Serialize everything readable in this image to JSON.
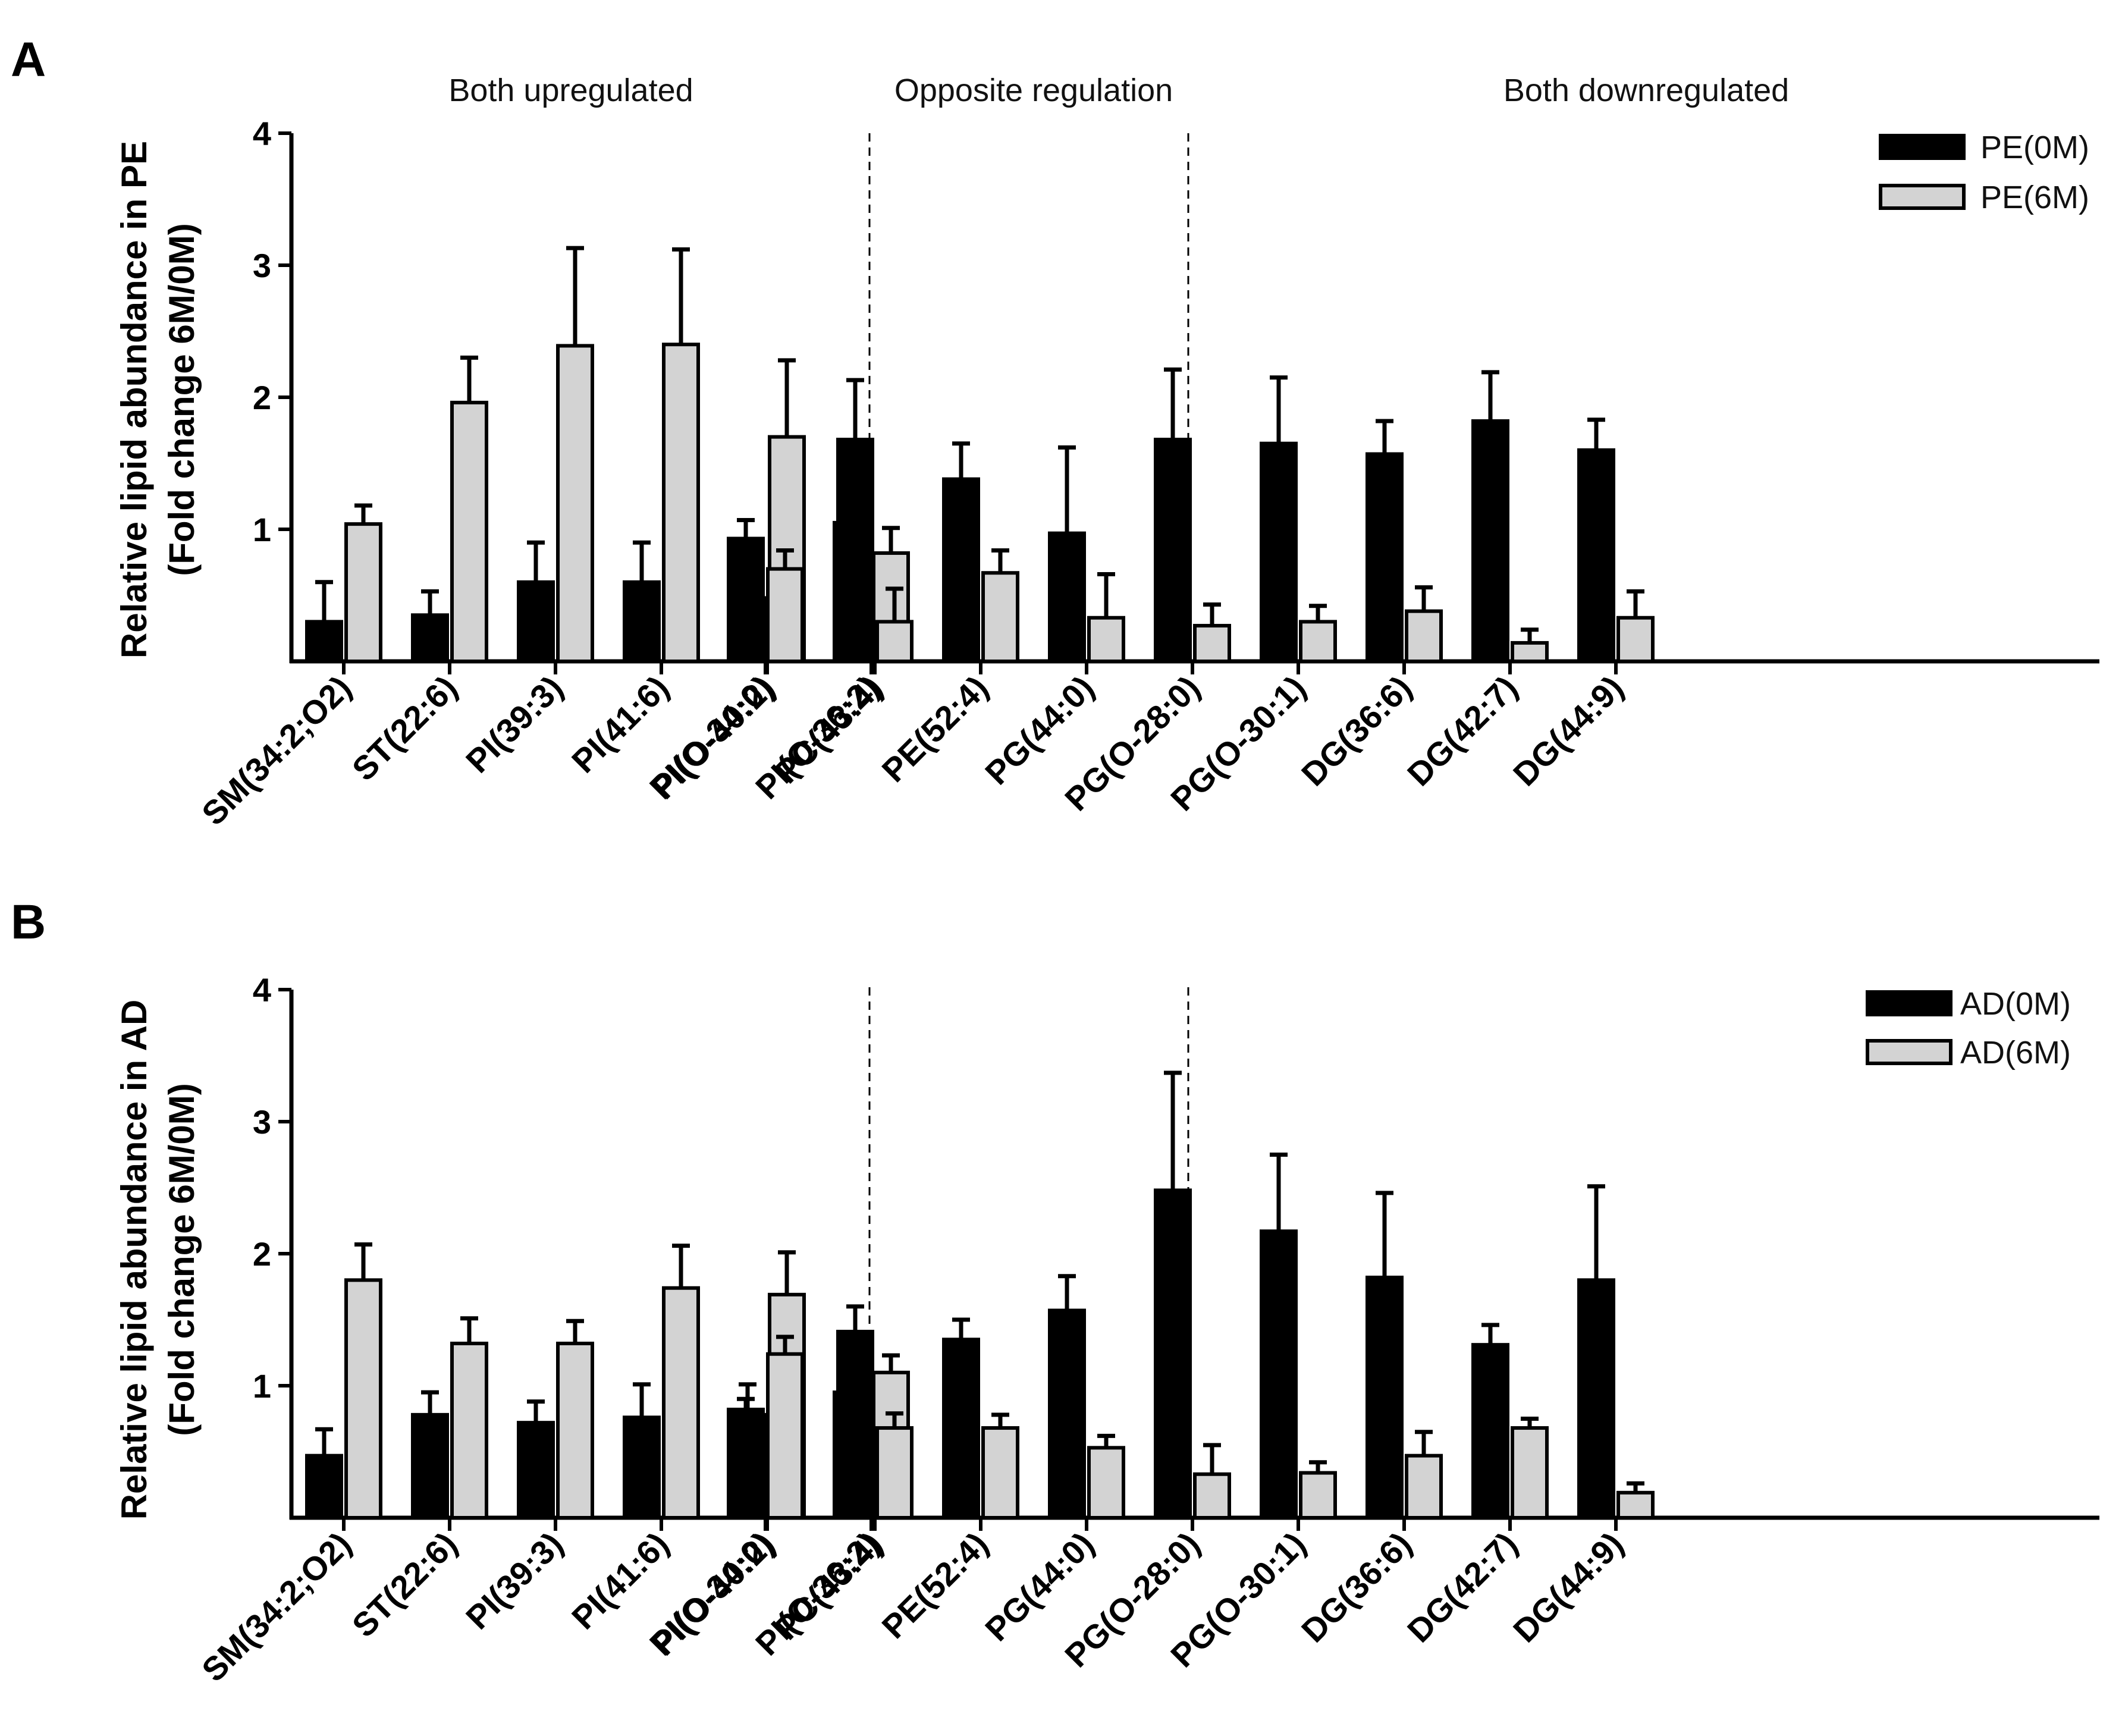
{
  "chart_data": [
    {
      "panel_label": "A",
      "type": "bar",
      "title": "",
      "ylabel_line1": "Relative lipid abundance in PE",
      "ylabel_line2": "(Fold change 6M/0M)",
      "ylim": [
        0,
        4
      ],
      "yticks": [
        1,
        2,
        3,
        4
      ],
      "groups": [
        {
          "label": "Both upregulated",
          "categories": [
            "SM(34:2;O2)",
            "ST(22:6)",
            "PI(39:3)",
            "PI(41:6)",
            "PI(O-40:2)"
          ]
        },
        {
          "label": "Opposite regulation",
          "categories": [
            "PI(O-34:0)",
            "PI(O-36:2)"
          ]
        },
        {
          "label": "Both downregulated",
          "categories": [
            "PC(43:4)",
            "PE(52:4)",
            "PG(44:0)",
            "PG(O-28:0)",
            "PG(O-30:1)",
            "DG(36:6)",
            "DG(42:7)",
            "DG(44:9)"
          ]
        }
      ],
      "categories": [
        "SM(34:2;O2)",
        "ST(22:6)",
        "PI(39:3)",
        "PI(41:6)",
        "PI(O-40:2)",
        "PI(O-34:0)",
        "PI(O-36:2)",
        "PC(43:4)",
        "PE(52:4)",
        "PG(44:0)",
        "PG(O-28:0)",
        "PG(O-30:1)",
        "DG(36:6)",
        "DG(42:7)",
        "DG(44:9)"
      ],
      "series": [
        {
          "name": "PE(0M)",
          "color": "#000000",
          "values": [
            0.3,
            0.35,
            0.6,
            0.6,
            0.48,
            0.93,
            1.05,
            1.68,
            1.38,
            0.97,
            1.68,
            1.65,
            1.57,
            1.82,
            1.6
          ],
          "errors": [
            0.3,
            0.18,
            0.3,
            0.3,
            0.17,
            0.14,
            0.16,
            0.45,
            0.27,
            0.65,
            0.53,
            0.5,
            0.25,
            0.37,
            0.23
          ]
        },
        {
          "name": "PE(6M)",
          "color": "#d3d3d3",
          "values": [
            1.04,
            1.96,
            2.39,
            2.4,
            1.7,
            0.7,
            0.82,
            0.3,
            0.67,
            0.33,
            0.27,
            0.3,
            0.38,
            0.14,
            0.33
          ],
          "errors": [
            0.14,
            0.34,
            0.74,
            0.72,
            0.58,
            0.14,
            0.19,
            0.25,
            0.17,
            0.33,
            0.16,
            0.12,
            0.18,
            0.1,
            0.2
          ]
        }
      ],
      "legend_position": "top-right"
    },
    {
      "panel_label": "B",
      "type": "bar",
      "title": "",
      "ylabel_line1": "Relative lipid abundance in AD",
      "ylabel_line2": "(Fold change 6M/0M)",
      "ylim": [
        0,
        4
      ],
      "yticks": [
        1,
        2,
        3,
        4
      ],
      "categories": [
        "SM(34:2;O2)",
        "ST(22:6)",
        "PI(39:3)",
        "PI(41:6)",
        "PI(O-40:2)",
        "PI(O-34:0)",
        "PI(O-36:2)",
        "PC(43:4)",
        "PE(52:4)",
        "PG(44:0)",
        "PG(O-28:0)",
        "PG(O-30:1)",
        "DG(36:6)",
        "DG(42:7)",
        "DG(44:9)"
      ],
      "series": [
        {
          "name": "AD(0M)",
          "color": "#000000",
          "values": [
            0.47,
            0.78,
            0.72,
            0.76,
            0.78,
            0.82,
            0.95,
            1.41,
            1.35,
            1.57,
            2.48,
            2.17,
            1.82,
            1.31,
            1.8
          ],
          "errors": [
            0.2,
            0.17,
            0.16,
            0.25,
            0.23,
            0.08,
            0.11,
            0.19,
            0.15,
            0.26,
            0.89,
            0.58,
            0.64,
            0.15,
            0.71
          ]
        },
        {
          "name": "AD(6M)",
          "color": "#d3d3d3",
          "values": [
            1.8,
            1.32,
            1.32,
            1.74,
            1.69,
            1.24,
            1.1,
            0.68,
            0.68,
            0.53,
            0.33,
            0.34,
            0.47,
            0.68,
            0.19
          ],
          "errors": [
            0.27,
            0.19,
            0.17,
            0.32,
            0.32,
            0.13,
            0.13,
            0.11,
            0.1,
            0.09,
            0.22,
            0.08,
            0.18,
            0.07,
            0.07
          ]
        }
      ],
      "legend_position": "top-right"
    }
  ]
}
